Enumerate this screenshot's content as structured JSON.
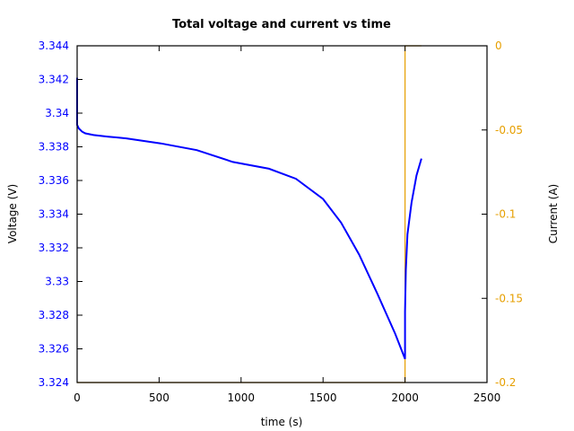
{
  "chart_data": {
    "type": "line",
    "title": "Total voltage and current vs time",
    "xlabel": "time (s)",
    "ylabel": "Voltage (V)",
    "ylabel_right": "Current (A)",
    "xlim": [
      0,
      2500
    ],
    "ylim": [
      3.324,
      3.344
    ],
    "ylim_right": [
      -0.2,
      0
    ],
    "xticks": [
      "0",
      "500",
      "1000",
      "1500",
      "2000",
      "2500"
    ],
    "yticks": [
      "3.344",
      "3.342",
      "3.34",
      "3.338",
      "3.336",
      "3.334",
      "3.332",
      "3.33",
      "3.328",
      "3.326",
      "3.324"
    ],
    "yticks_right": [
      "0",
      "-0.05",
      "-0.1",
      "-0.15",
      "-0.2"
    ],
    "grid": false,
    "legend": null,
    "colors": {
      "voltage": "#0000ff",
      "current": "#e69f00",
      "axes": "#000000"
    },
    "series": [
      {
        "name": "Voltage",
        "axis": "left",
        "color": "#0000ff",
        "x": [
          0,
          0,
          10,
          30,
          50,
          100,
          190,
          300,
          510,
          730,
          950,
          1170,
          1335,
          1500,
          1610,
          1720,
          1830,
          1940,
          2000,
          2000,
          2005,
          2015,
          2040,
          2070,
          2100
        ],
        "y": [
          3.3421,
          3.3393,
          3.3391,
          3.3389,
          3.3388,
          3.3387,
          3.3386,
          3.3385,
          3.3382,
          3.3378,
          3.3371,
          3.3367,
          3.3361,
          3.3349,
          3.3335,
          3.3316,
          3.3293,
          3.3269,
          3.3254,
          3.3282,
          3.3307,
          3.3328,
          3.3347,
          3.3363,
          3.3373
        ]
      },
      {
        "name": "Current",
        "axis": "right",
        "color": "#e69f00",
        "x": [
          0,
          2000,
          2000,
          2100
        ],
        "y": [
          -0.2,
          -0.2,
          0,
          0
        ]
      }
    ]
  }
}
